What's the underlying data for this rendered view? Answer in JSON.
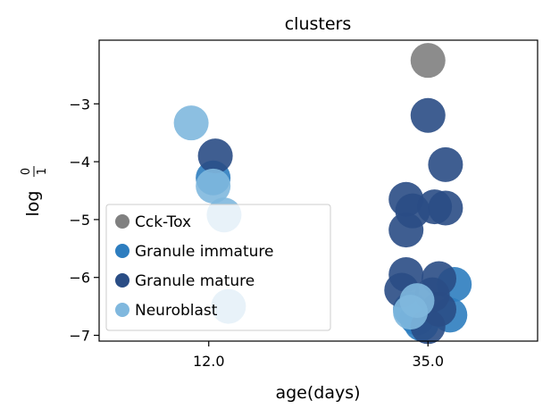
{
  "chart_data": {
    "type": "scatter",
    "title": "clusters",
    "xlabel": "age(days)",
    "ylabel": {
      "base": "log",
      "numerator": "0",
      "denominator": "1"
    },
    "categories": [
      "12.0",
      "35.0"
    ],
    "xlim": [
      -0.5,
      1.5
    ],
    "ylim": [
      -7.1,
      -1.9
    ],
    "yticks": [
      -3,
      -4,
      -5,
      -6,
      -7
    ],
    "ytick_labels": [
      "−3",
      "−4",
      "−5",
      "−6",
      "−7"
    ],
    "legend": {
      "position": "lower-left"
    },
    "series": [
      {
        "name": "Cck-Tox",
        "color": "#808080",
        "points": [
          {
            "x": 1.0,
            "y": -2.25
          }
        ]
      },
      {
        "name": "Granule immature",
        "color": "#2d7dbf",
        "points": [
          {
            "x": 0.02,
            "y": -4.28
          },
          {
            "x": 1.12,
            "y": -6.12
          },
          {
            "x": 1.1,
            "y": -6.65
          },
          {
            "x": 0.92,
            "y": -6.55
          },
          {
            "x": 0.95,
            "y": -6.7
          },
          {
            "x": 0.97,
            "y": -6.8
          }
        ]
      },
      {
        "name": "Granule mature",
        "color": "#2a4d85",
        "points": [
          {
            "x": 1.0,
            "y": -3.2
          },
          {
            "x": 1.08,
            "y": -4.05
          },
          {
            "x": 0.03,
            "y": -3.9
          },
          {
            "x": 0.9,
            "y": -4.65
          },
          {
            "x": 0.93,
            "y": -4.85
          },
          {
            "x": 1.03,
            "y": -4.78
          },
          {
            "x": 1.08,
            "y": -4.8
          },
          {
            "x": 0.9,
            "y": -5.18
          },
          {
            "x": 0.9,
            "y": -5.95
          },
          {
            "x": 1.05,
            "y": -6.02
          },
          {
            "x": 0.88,
            "y": -6.22
          },
          {
            "x": 1.02,
            "y": -6.3
          },
          {
            "x": 1.05,
            "y": -6.55
          },
          {
            "x": 1.0,
            "y": -6.85
          }
        ]
      },
      {
        "name": "Neuroblast",
        "color": "#80b8de",
        "points": [
          {
            "x": -0.08,
            "y": -3.33
          },
          {
            "x": 0.02,
            "y": -4.42
          },
          {
            "x": 0.07,
            "y": -4.92
          },
          {
            "x": 0.09,
            "y": -6.5
          },
          {
            "x": 0.95,
            "y": -6.4
          },
          {
            "x": 0.92,
            "y": -6.6
          }
        ]
      }
    ]
  }
}
